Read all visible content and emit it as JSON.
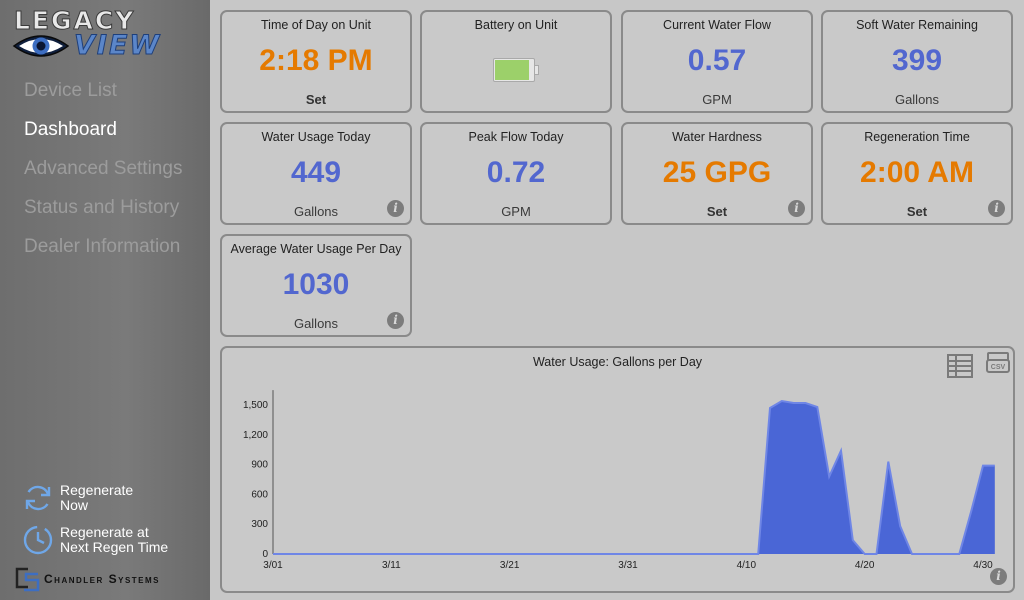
{
  "logo": {
    "top": "LEGACY",
    "bottom": "VIEW"
  },
  "nav": {
    "items": [
      {
        "label": "Device List",
        "active": false
      },
      {
        "label": "Dashboard",
        "active": true
      },
      {
        "label": "Advanced Settings",
        "active": false
      },
      {
        "label": "Status and History",
        "active": false
      },
      {
        "label": "Dealer Information",
        "active": false
      }
    ]
  },
  "actions": {
    "regen_now": "Regenerate\nNow",
    "regen_at": "Regenerate at\nNext Regen Time"
  },
  "brand": {
    "company": "Chandler Systems"
  },
  "tiles": {
    "time_of_day": {
      "title": "Time of Day on Unit",
      "value": "2:18 PM",
      "sub": "Set"
    },
    "battery": {
      "title": "Battery on Unit",
      "level": 0.9
    },
    "current_flow": {
      "title": "Current Water Flow",
      "value": "0.57",
      "sub": "GPM"
    },
    "soft_water": {
      "title": "Soft Water Remaining",
      "value": "399",
      "sub": "Gallons"
    },
    "usage_today": {
      "title": "Water Usage Today",
      "value": "449",
      "sub": "Gallons"
    },
    "peak_flow": {
      "title": "Peak Flow Today",
      "value": "0.72",
      "sub": "GPM"
    },
    "hardness": {
      "title": "Water Hardness",
      "value": "25 GPG",
      "sub": "Set"
    },
    "regen_time": {
      "title": "Regeneration Time",
      "value": "2:00 AM",
      "sub": "Set"
    },
    "avg_usage": {
      "title": "Average Water Usage Per Day",
      "value": "1030",
      "sub": "Gallons"
    }
  },
  "colors": {
    "value_blue": "#5267cf",
    "value_orange": "#e57a00",
    "chart_fill": "#4a66d6"
  },
  "chart_data": {
    "type": "area",
    "title": "Water Usage: Gallons per Day",
    "xlabel": "",
    "ylabel": "",
    "ylim": [
      0,
      1650
    ],
    "yticks": [
      0,
      300,
      600,
      900,
      1200,
      1500
    ],
    "ytick_labels": [
      "0",
      "300",
      "600",
      "900",
      "1,200",
      "1,500"
    ],
    "xtick_labels": [
      "3/01",
      "3/11",
      "3/21",
      "3/31",
      "4/10",
      "4/20",
      "4/30"
    ],
    "xtick_days": [
      0,
      10,
      20,
      30,
      40,
      50,
      60
    ],
    "x_days": [
      0,
      41,
      42,
      43,
      44,
      45,
      46,
      47,
      48,
      49,
      50,
      51,
      52,
      53,
      54,
      55,
      56,
      57,
      58,
      59,
      60,
      61
    ],
    "values": [
      0,
      0,
      1470,
      1540,
      1520,
      1520,
      1480,
      780,
      1040,
      140,
      0,
      0,
      930,
      280,
      0,
      0,
      0,
      0,
      0,
      430,
      890,
      890
    ],
    "grid": false,
    "legend": "none"
  }
}
